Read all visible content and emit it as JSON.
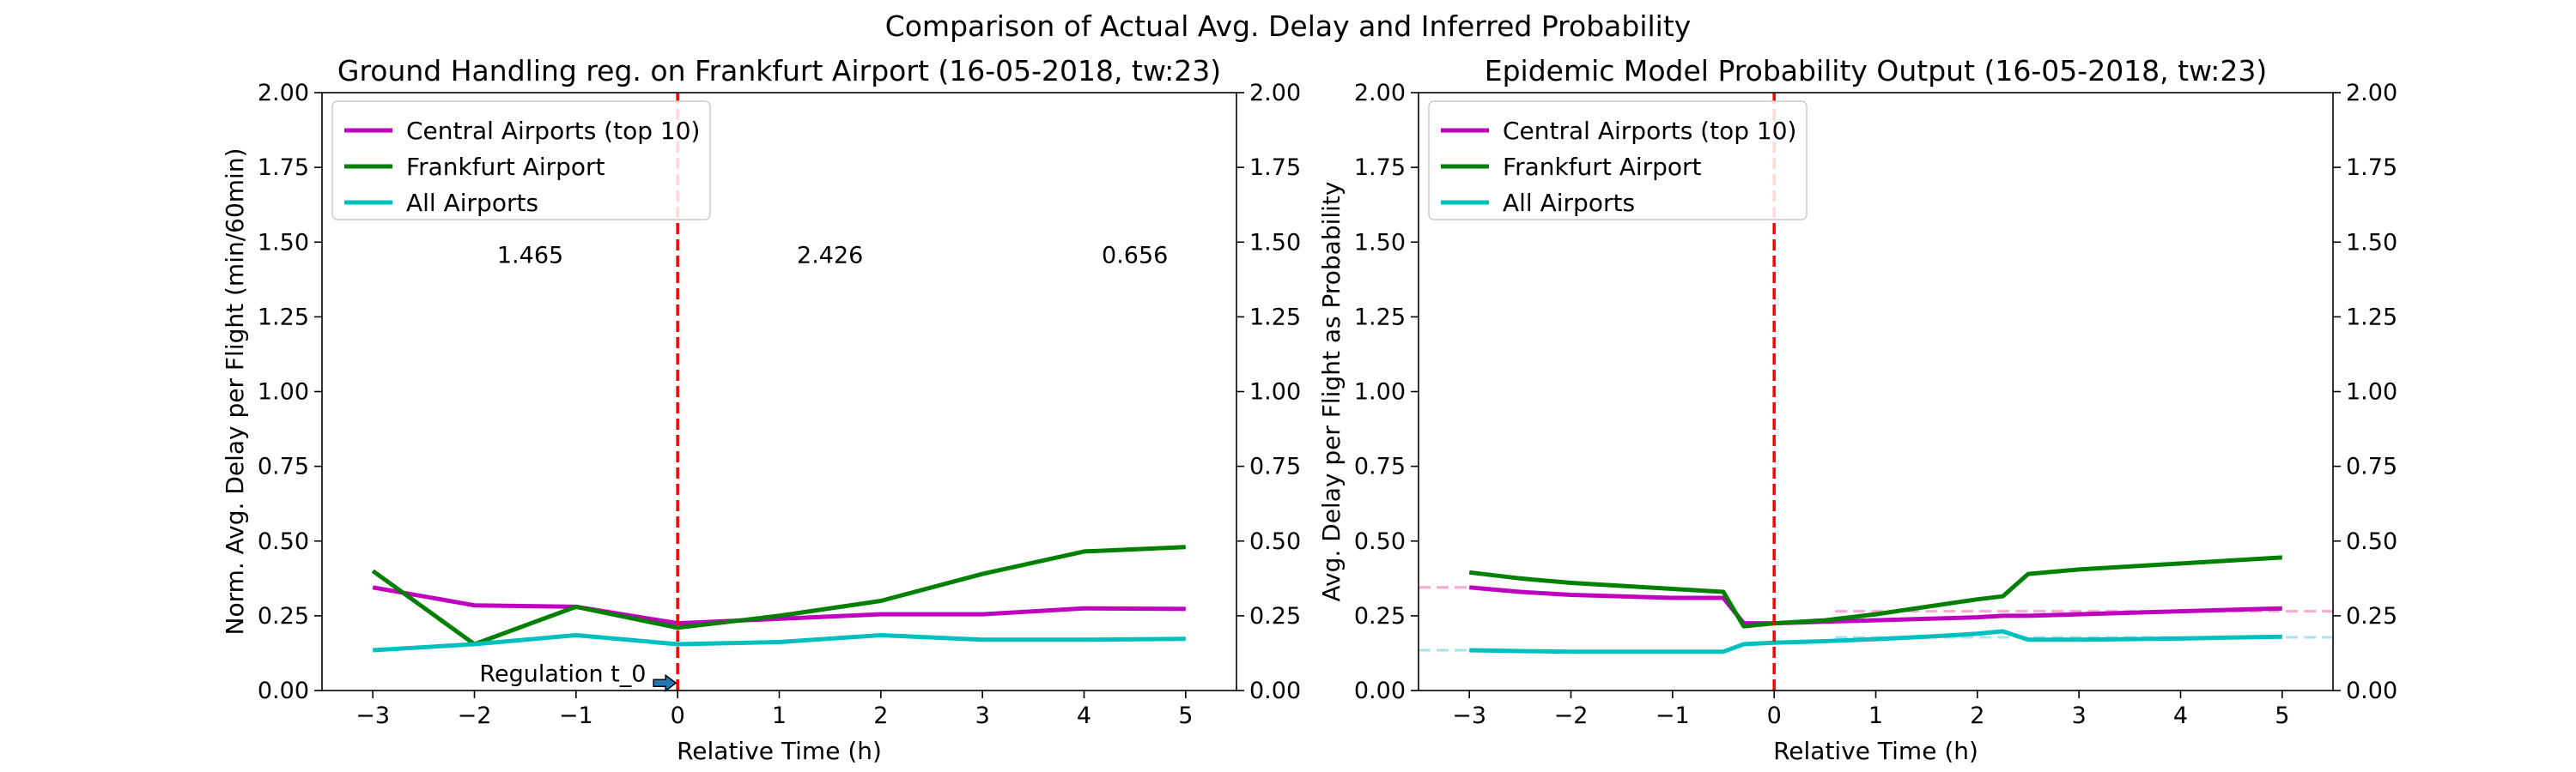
{
  "figure_title": "Comparison of Actual Avg. Delay and Inferred Probability",
  "chart_data": [
    {
      "type": "line",
      "title": "Ground Handling reg. on Frankfurt Airport (16-05-2018, tw:23)",
      "xlabel": "Relative Time (h)",
      "ylabel": "Norm. Avg. Delay per Flight (min/60min)",
      "xlim": [
        -3.5,
        5.5
      ],
      "ylim": [
        0,
        2
      ],
      "xticks": [
        -3,
        -2,
        -1,
        0,
        1,
        2,
        3,
        4,
        5
      ],
      "xtick_labels": [
        "−3",
        "−2",
        "−1",
        "0",
        "1",
        "2",
        "3",
        "4",
        "5"
      ],
      "yticks": [
        0,
        0.25,
        0.5,
        0.75,
        1,
        1.25,
        1.5,
        1.75,
        2
      ],
      "ytick_labels": [
        "0.00",
        "0.25",
        "0.50",
        "0.75",
        "1.00",
        "1.25",
        "1.50",
        "1.75",
        "2.00"
      ],
      "secondary_y": true,
      "grid": false,
      "legend_position": "top-left",
      "series": [
        {
          "name": "Central Airports (top 10)",
          "color": "#bf00bf",
          "x": [
            -3,
            -2,
            -1,
            0,
            1,
            2,
            3,
            4,
            5
          ],
          "y": [
            0.345,
            0.285,
            0.28,
            0.225,
            0.24,
            0.255,
            0.255,
            0.275,
            0.273
          ]
        },
        {
          "name": "Frankfurt Airport",
          "color": "#008000",
          "x": [
            -3,
            -2,
            -1,
            0,
            1,
            2,
            3,
            4,
            5
          ],
          "y": [
            0.4,
            0.155,
            0.28,
            0.21,
            0.25,
            0.3,
            0.39,
            0.465,
            0.48
          ]
        },
        {
          "name": "All Airports",
          "color": "#00bfbf",
          "x": [
            -3,
            -2,
            -1,
            0,
            1,
            2,
            3,
            4,
            5
          ],
          "y": [
            0.135,
            0.155,
            0.185,
            0.155,
            0.162,
            0.185,
            0.17,
            0.17,
            0.173
          ]
        }
      ],
      "vline": {
        "x": 0,
        "color": "#ff0000",
        "style": "dashed"
      },
      "annotations": [
        {
          "text": "1.465",
          "x": -1.45,
          "y": 1.43
        },
        {
          "text": "2.426",
          "x": 1.5,
          "y": 1.43
        },
        {
          "text": "0.656",
          "x": 4.5,
          "y": 1.43
        }
      ],
      "arrow_annotation": {
        "text": "Regulation t_0",
        "x_text": -1.95,
        "y_text": 0.03,
        "x_end": 0,
        "y_end": 0.025
      }
    },
    {
      "type": "line",
      "title": "Epidemic Model Probability Output (16-05-2018, tw:23)",
      "xlabel": "Relative Time (h)",
      "ylabel": "Avg. Delay per Flight as Probability",
      "xlim": [
        -3.5,
        5.5
      ],
      "ylim": [
        0,
        2
      ],
      "xticks": [
        -3,
        -2,
        -1,
        0,
        1,
        2,
        3,
        4,
        5
      ],
      "xtick_labels": [
        "−3",
        "−2",
        "−1",
        "0",
        "1",
        "2",
        "3",
        "4",
        "5"
      ],
      "yticks": [
        0,
        0.25,
        0.5,
        0.75,
        1,
        1.25,
        1.5,
        1.75,
        2
      ],
      "ytick_labels": [
        "0.00",
        "0.25",
        "0.50",
        "0.75",
        "1.00",
        "1.25",
        "1.50",
        "1.75",
        "2.00"
      ],
      "secondary_y": true,
      "grid": false,
      "legend_position": "top-left",
      "series": [
        {
          "name": "Central Airports (top 10)",
          "color": "#bf00bf",
          "x": [
            -3,
            -2.5,
            -2,
            -1.5,
            -1,
            -0.5,
            -0.3,
            0,
            0.5,
            1,
            1.5,
            2,
            2.25,
            2.5,
            3,
            3.5,
            4,
            4.5,
            5
          ],
          "y": [
            0.345,
            0.33,
            0.32,
            0.315,
            0.31,
            0.31,
            0.225,
            0.225,
            0.23,
            0.235,
            0.24,
            0.245,
            0.25,
            0.25,
            0.255,
            0.26,
            0.265,
            0.27,
            0.275
          ]
        },
        {
          "name": "Frankfurt Airport",
          "color": "#008000",
          "x": [
            -3,
            -2.5,
            -2,
            -1.5,
            -1,
            -0.5,
            -0.3,
            0,
            0.5,
            1,
            1.5,
            2,
            2.25,
            2.5,
            3,
            3.5,
            4,
            4.5,
            5
          ],
          "y": [
            0.395,
            0.375,
            0.36,
            0.35,
            0.34,
            0.33,
            0.215,
            0.225,
            0.235,
            0.255,
            0.28,
            0.305,
            0.315,
            0.39,
            0.405,
            0.415,
            0.425,
            0.435,
            0.445
          ]
        },
        {
          "name": "All Airports",
          "color": "#00bfbf",
          "x": [
            -3,
            -2.5,
            -2,
            -1.5,
            -1,
            -0.5,
            -0.3,
            0,
            0.5,
            1,
            1.5,
            2,
            2.25,
            2.5,
            3,
            3.5,
            4,
            4.5,
            5
          ],
          "y": [
            0.135,
            0.132,
            0.13,
            0.13,
            0.13,
            0.13,
            0.155,
            0.16,
            0.165,
            0.172,
            0.18,
            0.19,
            0.198,
            0.17,
            0.17,
            0.172,
            0.174,
            0.177,
            0.18
          ]
        }
      ],
      "reference_lines": [
        {
          "y": 0.345,
          "x_start": -3.5,
          "x_end": -3,
          "color": "#f7a8d3"
        },
        {
          "y": 0.265,
          "x_start": 0.6,
          "x_end": 5.5,
          "color": "#f7a8d3"
        },
        {
          "y": 0.135,
          "x_start": -3.5,
          "x_end": -3,
          "color": "#a9e3ec"
        },
        {
          "y": 0.178,
          "x_start": 0.6,
          "x_end": 5.5,
          "color": "#a9e3ec"
        }
      ],
      "vline": {
        "x": 0,
        "color": "#ff0000",
        "style": "dashed"
      }
    }
  ]
}
